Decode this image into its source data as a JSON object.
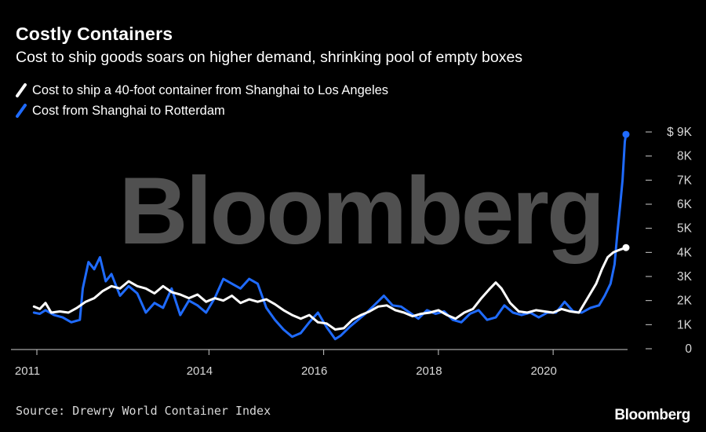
{
  "header": {
    "title": "Costly Containers",
    "subtitle": "Cost to ship goods soars on higher demand, shrinking pool of empty boxes"
  },
  "colors": {
    "background": "#000000",
    "series_la": "#ffffff",
    "series_rotterdam": "#1f6bff",
    "axis": "#cccccc",
    "watermark": "#505050"
  },
  "watermark": "Bloomberg",
  "footer": {
    "source": "Source: Drewry World Container Index",
    "brand": "Bloomberg"
  },
  "chart_data": {
    "type": "line",
    "title": "Costly Containers",
    "subtitle": "Cost to ship goods soars on higher demand, shrinking pool of empty boxes",
    "xlim": [
      2011.0,
      2021.3
    ],
    "ylim": [
      0,
      9000
    ],
    "y_axis_position": "right",
    "x_ticks": [
      2011,
      2014,
      2016,
      2018,
      2020
    ],
    "x_tick_labels": [
      "2011",
      "2014",
      "2016",
      "2018",
      "2020"
    ],
    "y_ticks": [
      0,
      1000,
      2000,
      3000,
      4000,
      5000,
      6000,
      7000,
      8000,
      9000
    ],
    "y_tick_labels": [
      "0",
      "1K",
      "2K",
      "3K",
      "4K",
      "5K",
      "6K",
      "7K",
      "8K",
      "$ 9K"
    ],
    "grid": false,
    "legend_position": "top-left",
    "series": [
      {
        "name": "Cost to ship a 40-foot container from Shanghai to Los Angeles",
        "color": "#ffffff",
        "points": [
          [
            2010.95,
            1750
          ],
          [
            2011.05,
            1650
          ],
          [
            2011.15,
            1900
          ],
          [
            2011.25,
            1500
          ],
          [
            2011.4,
            1550
          ],
          [
            2011.55,
            1500
          ],
          [
            2011.7,
            1700
          ],
          [
            2011.85,
            1950
          ],
          [
            2012.0,
            2100
          ],
          [
            2012.15,
            2400
          ],
          [
            2012.3,
            2600
          ],
          [
            2012.45,
            2500
          ],
          [
            2012.6,
            2800
          ],
          [
            2012.75,
            2600
          ],
          [
            2012.9,
            2500
          ],
          [
            2013.05,
            2300
          ],
          [
            2013.2,
            2600
          ],
          [
            2013.35,
            2350
          ],
          [
            2013.5,
            2250
          ],
          [
            2013.65,
            2100
          ],
          [
            2013.8,
            2250
          ],
          [
            2013.95,
            1950
          ],
          [
            2014.1,
            2100
          ],
          [
            2014.25,
            2000
          ],
          [
            2014.4,
            2200
          ],
          [
            2014.55,
            1900
          ],
          [
            2014.7,
            2050
          ],
          [
            2014.85,
            1950
          ],
          [
            2015.0,
            2050
          ],
          [
            2015.15,
            1850
          ],
          [
            2015.3,
            1600
          ],
          [
            2015.45,
            1400
          ],
          [
            2015.6,
            1250
          ],
          [
            2015.75,
            1400
          ],
          [
            2015.9,
            1100
          ],
          [
            2016.05,
            1050
          ],
          [
            2016.2,
            800
          ],
          [
            2016.35,
            850
          ],
          [
            2016.5,
            1200
          ],
          [
            2016.65,
            1400
          ],
          [
            2016.8,
            1550
          ],
          [
            2016.95,
            1750
          ],
          [
            2017.1,
            1800
          ],
          [
            2017.25,
            1600
          ],
          [
            2017.4,
            1500
          ],
          [
            2017.55,
            1350
          ],
          [
            2017.7,
            1450
          ],
          [
            2017.85,
            1500
          ],
          [
            2018.0,
            1600
          ],
          [
            2018.15,
            1400
          ],
          [
            2018.3,
            1250
          ],
          [
            2018.45,
            1500
          ],
          [
            2018.6,
            1650
          ],
          [
            2018.75,
            2100
          ],
          [
            2018.9,
            2500
          ],
          [
            2019.0,
            2750
          ],
          [
            2019.1,
            2500
          ],
          [
            2019.25,
            1900
          ],
          [
            2019.4,
            1550
          ],
          [
            2019.55,
            1500
          ],
          [
            2019.7,
            1600
          ],
          [
            2019.85,
            1550
          ],
          [
            2020.0,
            1500
          ],
          [
            2020.15,
            1650
          ],
          [
            2020.3,
            1550
          ],
          [
            2020.45,
            1500
          ],
          [
            2020.6,
            2100
          ],
          [
            2020.75,
            2700
          ],
          [
            2020.85,
            3300
          ],
          [
            2020.95,
            3800
          ],
          [
            2021.05,
            4000
          ],
          [
            2021.15,
            4100
          ],
          [
            2021.27,
            4200
          ]
        ]
      },
      {
        "name": "Cost from Shanghai to Rotterdam",
        "color": "#1f6bff",
        "points": [
          [
            2010.95,
            1500
          ],
          [
            2011.05,
            1450
          ],
          [
            2011.15,
            1600
          ],
          [
            2011.3,
            1400
          ],
          [
            2011.45,
            1300
          ],
          [
            2011.6,
            1100
          ],
          [
            2011.75,
            1200
          ],
          [
            2011.8,
            2500
          ],
          [
            2011.9,
            3600
          ],
          [
            2012.0,
            3300
          ],
          [
            2012.1,
            3800
          ],
          [
            2012.2,
            2800
          ],
          [
            2012.3,
            3100
          ],
          [
            2012.45,
            2200
          ],
          [
            2012.6,
            2600
          ],
          [
            2012.75,
            2300
          ],
          [
            2012.9,
            1500
          ],
          [
            2013.05,
            1900
          ],
          [
            2013.2,
            1700
          ],
          [
            2013.35,
            2500
          ],
          [
            2013.5,
            1400
          ],
          [
            2013.65,
            2000
          ],
          [
            2013.8,
            1800
          ],
          [
            2013.95,
            1500
          ],
          [
            2014.1,
            2100
          ],
          [
            2014.25,
            2900
          ],
          [
            2014.4,
            2700
          ],
          [
            2014.55,
            2500
          ],
          [
            2014.7,
            2900
          ],
          [
            2014.85,
            2700
          ],
          [
            2015.0,
            1700
          ],
          [
            2015.15,
            1200
          ],
          [
            2015.3,
            800
          ],
          [
            2015.45,
            500
          ],
          [
            2015.6,
            650
          ],
          [
            2015.75,
            1100
          ],
          [
            2015.9,
            1500
          ],
          [
            2016.05,
            900
          ],
          [
            2016.2,
            400
          ],
          [
            2016.3,
            550
          ],
          [
            2016.45,
            900
          ],
          [
            2016.6,
            1200
          ],
          [
            2016.75,
            1500
          ],
          [
            2016.9,
            1850
          ],
          [
            2017.05,
            2200
          ],
          [
            2017.2,
            1800
          ],
          [
            2017.35,
            1750
          ],
          [
            2017.5,
            1500
          ],
          [
            2017.65,
            1250
          ],
          [
            2017.8,
            1600
          ],
          [
            2017.95,
            1450
          ],
          [
            2018.1,
            1550
          ],
          [
            2018.25,
            1200
          ],
          [
            2018.4,
            1100
          ],
          [
            2018.55,
            1450
          ],
          [
            2018.7,
            1600
          ],
          [
            2018.85,
            1200
          ],
          [
            2019.0,
            1300
          ],
          [
            2019.15,
            1800
          ],
          [
            2019.3,
            1500
          ],
          [
            2019.45,
            1400
          ],
          [
            2019.6,
            1500
          ],
          [
            2019.75,
            1300
          ],
          [
            2019.9,
            1500
          ],
          [
            2020.05,
            1500
          ],
          [
            2020.2,
            1950
          ],
          [
            2020.35,
            1550
          ],
          [
            2020.5,
            1500
          ],
          [
            2020.65,
            1700
          ],
          [
            2020.8,
            1800
          ],
          [
            2020.9,
            2200
          ],
          [
            2021.0,
            2700
          ],
          [
            2021.07,
            3500
          ],
          [
            2021.12,
            4800
          ],
          [
            2021.17,
            6000
          ],
          [
            2021.21,
            7000
          ],
          [
            2021.25,
            8600
          ],
          [
            2021.27,
            8900
          ]
        ]
      }
    ]
  }
}
